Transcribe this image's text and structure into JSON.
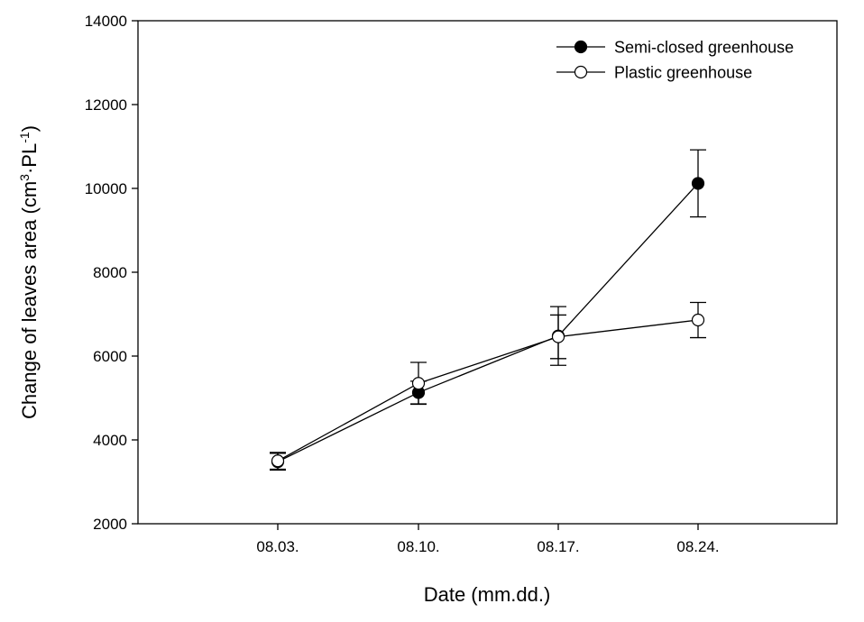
{
  "chart_data": {
    "type": "line",
    "title": "",
    "xlabel": "Date (mm.dd.)",
    "ylabel": {
      "text": "Change of leaves area (cm",
      "sup1": "3",
      "mid": "·PL",
      "sup2": "-1",
      "close": ")"
    },
    "categories": [
      "08.03.",
      "08.10.",
      "08.17.",
      "08.24."
    ],
    "yticks": [
      "2000",
      "4000",
      "6000",
      "8000",
      "10000",
      "12000",
      "14000"
    ],
    "ylim": [
      2000,
      14000
    ],
    "grid": false,
    "legend_position": "top-right",
    "series": [
      {
        "name": "Semi-closed greenhouse",
        "marker": "filled-circle",
        "color": "#000000",
        "values": [
          3480,
          5130,
          6480,
          10120
        ],
        "errors": [
          200,
          270,
          700,
          800
        ]
      },
      {
        "name": "Plastic greenhouse",
        "marker": "open-circle",
        "color": "#000000",
        "values": [
          3500,
          5350,
          6460,
          6860
        ],
        "errors": [
          200,
          500,
          520,
          420
        ]
      }
    ]
  }
}
